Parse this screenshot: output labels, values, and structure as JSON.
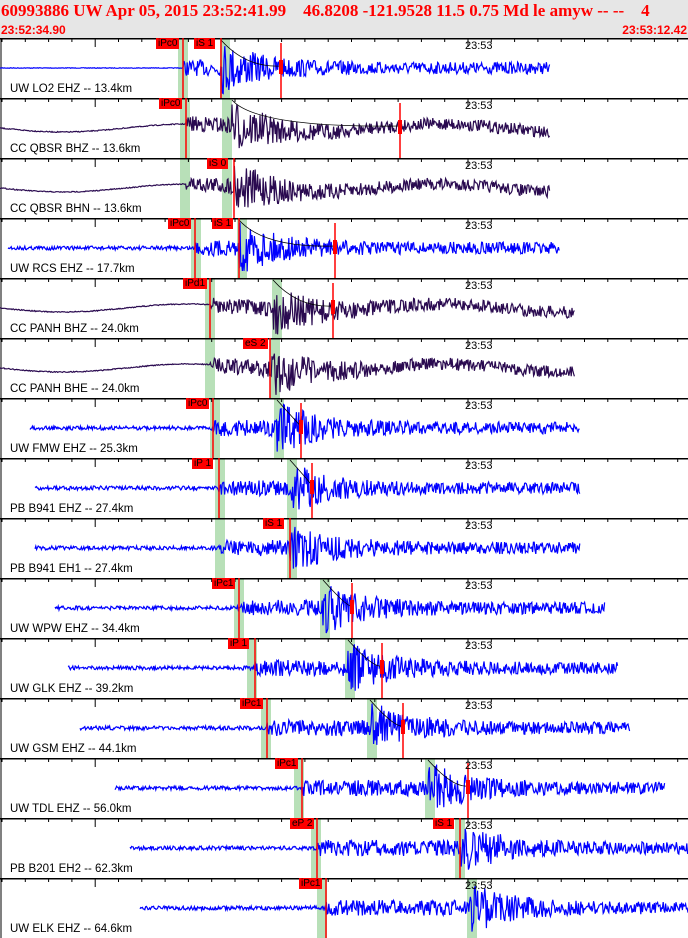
{
  "header": {
    "title": "60993886 UW Apr 05, 2015 23:52:41.99    46.8208 -121.9528 11.5 0.75 Md le amyw -- --    4",
    "start_time": "23:52:34.90",
    "end_time": "23:53:12.42"
  },
  "minute_mark": "23:53",
  "colors": {
    "blue": "#0000ff",
    "purple": "#2a0a50",
    "pick": "#ff0000",
    "window": "#b8e0b8"
  },
  "traces": [
    {
      "label": "UW LO2 EHZ -- 13.4km",
      "picks": [
        "iPc0",
        "iS 1"
      ]
    },
    {
      "label": "CC QBSR BHZ -- 13.6km",
      "picks": [
        "iPc0"
      ]
    },
    {
      "label": "CC QBSR BHN -- 13.6km",
      "picks": [
        "iS 0"
      ]
    },
    {
      "label": "UW RCS EHZ -- 17.7km",
      "picks": [
        "iPc0",
        "iS 1"
      ]
    },
    {
      "label": "CC PANH BHZ -- 24.0km",
      "picks": [
        "iPd1"
      ]
    },
    {
      "label": "CC PANH BHE -- 24.0km",
      "picks": [
        "eS 2"
      ]
    },
    {
      "label": "UW FMW EHZ -- 25.3km",
      "picks": [
        "iPc0"
      ]
    },
    {
      "label": "PB B941 EHZ -- 27.4km",
      "picks": [
        "iP 1"
      ]
    },
    {
      "label": "PB B941 EH1 -- 27.4km",
      "picks": [
        "iS 1"
      ]
    },
    {
      "label": "UW WPW EHZ -- 34.4km",
      "picks": [
        "iPc1"
      ]
    },
    {
      "label": "UW GLK EHZ -- 39.2km",
      "picks": [
        "iP 1"
      ]
    },
    {
      "label": "UW GSM EHZ -- 44.1km",
      "picks": [
        "iPc1"
      ]
    },
    {
      "label": "UW TDL EHZ -- 56.0km",
      "picks": [
        "iPc1"
      ]
    },
    {
      "label": "PB B201 EH2 -- 62.3km",
      "picks": [
        "eP 2",
        "iS 1"
      ]
    },
    {
      "label": "UW ELK EHZ -- 64.6km",
      "picks": [
        "iPc1"
      ]
    }
  ]
}
